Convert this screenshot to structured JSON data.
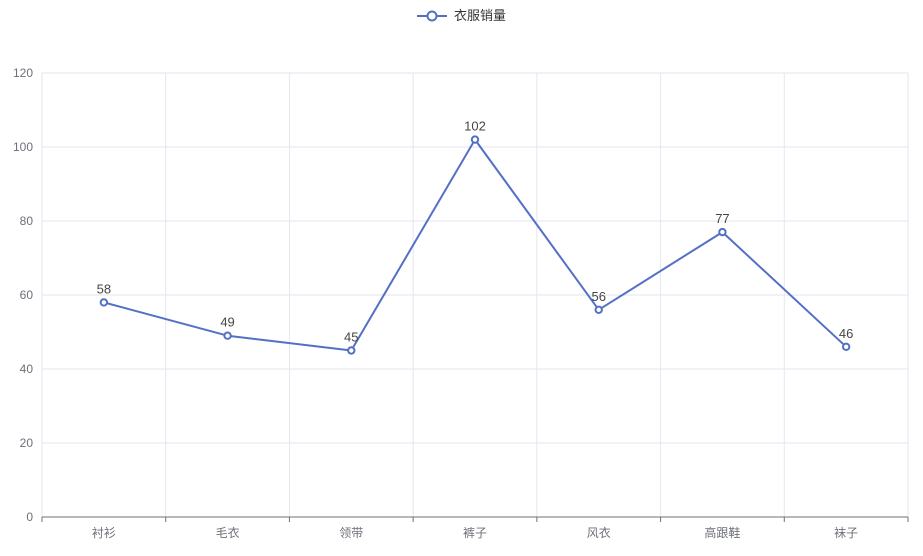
{
  "legend": {
    "items": [
      {
        "label": "衣服销量",
        "marker": "line-circle-marker-icon"
      }
    ]
  },
  "chart_data": {
    "type": "line",
    "title": "",
    "xlabel": "",
    "ylabel": "",
    "categories": [
      "衬衫",
      "毛衣",
      "领带",
      "裤子",
      "风衣",
      "高跟鞋",
      "袜子"
    ],
    "series": [
      {
        "name": "衣服销量",
        "values": [
          58,
          49,
          45,
          102,
          56,
          77,
          46
        ]
      }
    ],
    "data_labels": [
      "58",
      "49",
      "45",
      "102",
      "56",
      "77",
      "46"
    ],
    "ylim": [
      0,
      120
    ],
    "y_ticks": [
      0,
      20,
      40,
      60,
      80,
      100,
      120
    ],
    "grid": true,
    "legend_position": "top-center",
    "marker": "empty-circle",
    "show_data_labels": true
  },
  "colors": {
    "series_line": "#5470C6",
    "marker_fill": "#FFFFFF",
    "grid_line": "#E1E6F1",
    "axis_line": "#6E7079",
    "axis_label": "#6E7079",
    "data_label": "#464646",
    "legend_text": "#333333",
    "background": "#FFFFFF"
  }
}
